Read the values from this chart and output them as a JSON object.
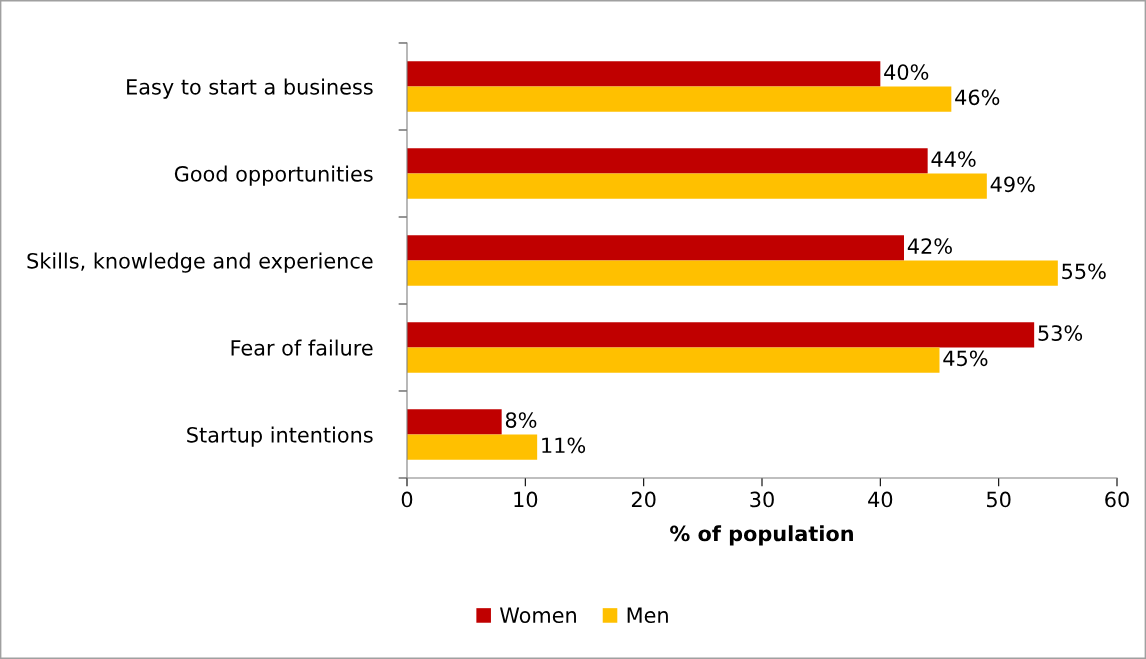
{
  "chart_data": {
    "type": "bar",
    "orientation": "horizontal",
    "categories": [
      "Easy to start a business",
      "Good opportunities",
      "Skills, knowledge and experience",
      "Fear of failure",
      "Startup intentions"
    ],
    "series": [
      {
        "name": "Women",
        "color": "#c00000",
        "values": [
          40,
          44,
          42,
          53,
          8
        ],
        "value_labels": [
          "40%",
          "44%",
          "42%",
          "53%",
          "8%"
        ]
      },
      {
        "name": "Men",
        "color": "#ffc000",
        "values": [
          46,
          49,
          55,
          45,
          11
        ],
        "value_labels": [
          "46%",
          "49%",
          "55%",
          "45%",
          "11%"
        ]
      }
    ],
    "xlabel": "% of population",
    "xlim": [
      0,
      60
    ],
    "xticks": [
      0,
      10,
      20,
      30,
      40,
      50,
      60
    ],
    "grid": false,
    "legend": "bottom"
  }
}
